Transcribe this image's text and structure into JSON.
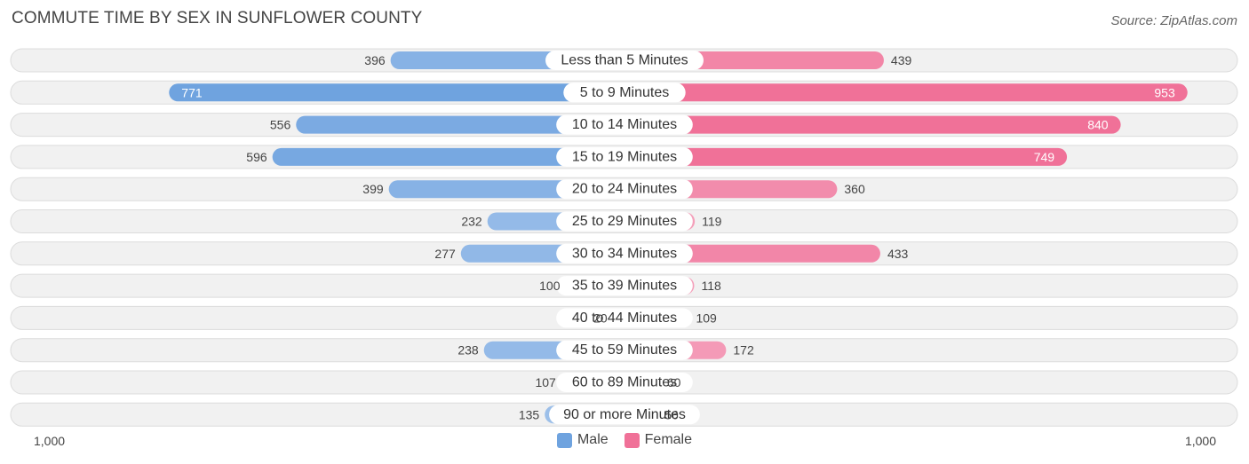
{
  "title": "COMMUTE TIME BY SEX IN SUNFLOWER COUNTY",
  "source": "Source: ZipAtlas.com",
  "colors": {
    "male": "#6fa3df",
    "male_light": "#a7c6ec",
    "female": "#f07198",
    "female_light": "#f5a8c1"
  },
  "legend": {
    "male": "Male",
    "female": "Female"
  },
  "axis": {
    "left_label": "1,000",
    "right_label": "1,000"
  },
  "chart_data": {
    "type": "bar",
    "orientation": "horizontal-diverging",
    "title": "COMMUTE TIME BY SEX IN SUNFLOWER COUNTY",
    "categories": [
      "Less than 5 Minutes",
      "5 to 9 Minutes",
      "10 to 14 Minutes",
      "15 to 19 Minutes",
      "20 to 24 Minutes",
      "25 to 29 Minutes",
      "30 to 34 Minutes",
      "35 to 39 Minutes",
      "40 to 44 Minutes",
      "45 to 59 Minutes",
      "60 to 89 Minutes",
      "90 or more Minutes"
    ],
    "series": [
      {
        "name": "Male",
        "values": [
          396,
          771,
          556,
          596,
          399,
          232,
          277,
          100,
          20,
          238,
          107,
          135
        ]
      },
      {
        "name": "Female",
        "values": [
          439,
          953,
          840,
          749,
          360,
          119,
          433,
          118,
          109,
          172,
          60,
          56
        ]
      }
    ],
    "xlim": [
      -1000,
      1000
    ],
    "legend_position": "bottom-center"
  }
}
